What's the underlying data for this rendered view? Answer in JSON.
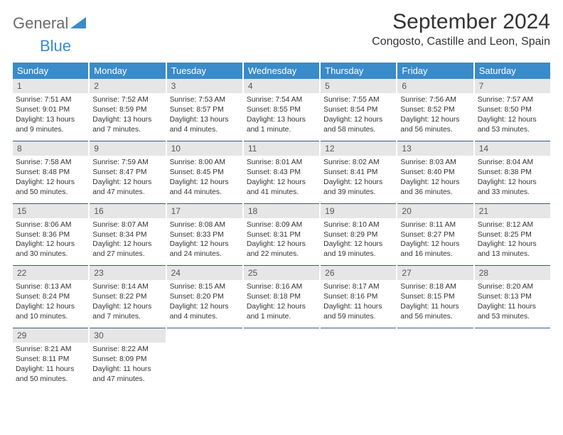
{
  "brand": {
    "part1": "General",
    "part2": "Blue"
  },
  "title": "September 2024",
  "location": "Congosto, Castille and Leon, Spain",
  "colors": {
    "header_bg": "#3a8bc9",
    "header_text": "#ffffff",
    "daynum_bg": "#e6e6e6",
    "row_border": "#3a5a80",
    "body_text": "#333333",
    "page_bg": "#ffffff"
  },
  "day_headers": [
    "Sunday",
    "Monday",
    "Tuesday",
    "Wednesday",
    "Thursday",
    "Friday",
    "Saturday"
  ],
  "weeks": [
    [
      {
        "n": "1",
        "sr": "7:51 AM",
        "ss": "9:01 PM",
        "dl": "13 hours and 9 minutes."
      },
      {
        "n": "2",
        "sr": "7:52 AM",
        "ss": "8:59 PM",
        "dl": "13 hours and 7 minutes."
      },
      {
        "n": "3",
        "sr": "7:53 AM",
        "ss": "8:57 PM",
        "dl": "13 hours and 4 minutes."
      },
      {
        "n": "4",
        "sr": "7:54 AM",
        "ss": "8:55 PM",
        "dl": "13 hours and 1 minute."
      },
      {
        "n": "5",
        "sr": "7:55 AM",
        "ss": "8:54 PM",
        "dl": "12 hours and 58 minutes."
      },
      {
        "n": "6",
        "sr": "7:56 AM",
        "ss": "8:52 PM",
        "dl": "12 hours and 56 minutes."
      },
      {
        "n": "7",
        "sr": "7:57 AM",
        "ss": "8:50 PM",
        "dl": "12 hours and 53 minutes."
      }
    ],
    [
      {
        "n": "8",
        "sr": "7:58 AM",
        "ss": "8:48 PM",
        "dl": "12 hours and 50 minutes."
      },
      {
        "n": "9",
        "sr": "7:59 AM",
        "ss": "8:47 PM",
        "dl": "12 hours and 47 minutes."
      },
      {
        "n": "10",
        "sr": "8:00 AM",
        "ss": "8:45 PM",
        "dl": "12 hours and 44 minutes."
      },
      {
        "n": "11",
        "sr": "8:01 AM",
        "ss": "8:43 PM",
        "dl": "12 hours and 41 minutes."
      },
      {
        "n": "12",
        "sr": "8:02 AM",
        "ss": "8:41 PM",
        "dl": "12 hours and 39 minutes."
      },
      {
        "n": "13",
        "sr": "8:03 AM",
        "ss": "8:40 PM",
        "dl": "12 hours and 36 minutes."
      },
      {
        "n": "14",
        "sr": "8:04 AM",
        "ss": "8:38 PM",
        "dl": "12 hours and 33 minutes."
      }
    ],
    [
      {
        "n": "15",
        "sr": "8:06 AM",
        "ss": "8:36 PM",
        "dl": "12 hours and 30 minutes."
      },
      {
        "n": "16",
        "sr": "8:07 AM",
        "ss": "8:34 PM",
        "dl": "12 hours and 27 minutes."
      },
      {
        "n": "17",
        "sr": "8:08 AM",
        "ss": "8:33 PM",
        "dl": "12 hours and 24 minutes."
      },
      {
        "n": "18",
        "sr": "8:09 AM",
        "ss": "8:31 PM",
        "dl": "12 hours and 22 minutes."
      },
      {
        "n": "19",
        "sr": "8:10 AM",
        "ss": "8:29 PM",
        "dl": "12 hours and 19 minutes."
      },
      {
        "n": "20",
        "sr": "8:11 AM",
        "ss": "8:27 PM",
        "dl": "12 hours and 16 minutes."
      },
      {
        "n": "21",
        "sr": "8:12 AM",
        "ss": "8:25 PM",
        "dl": "12 hours and 13 minutes."
      }
    ],
    [
      {
        "n": "22",
        "sr": "8:13 AM",
        "ss": "8:24 PM",
        "dl": "12 hours and 10 minutes."
      },
      {
        "n": "23",
        "sr": "8:14 AM",
        "ss": "8:22 PM",
        "dl": "12 hours and 7 minutes."
      },
      {
        "n": "24",
        "sr": "8:15 AM",
        "ss": "8:20 PM",
        "dl": "12 hours and 4 minutes."
      },
      {
        "n": "25",
        "sr": "8:16 AM",
        "ss": "8:18 PM",
        "dl": "12 hours and 1 minute."
      },
      {
        "n": "26",
        "sr": "8:17 AM",
        "ss": "8:16 PM",
        "dl": "11 hours and 59 minutes."
      },
      {
        "n": "27",
        "sr": "8:18 AM",
        "ss": "8:15 PM",
        "dl": "11 hours and 56 minutes."
      },
      {
        "n": "28",
        "sr": "8:20 AM",
        "ss": "8:13 PM",
        "dl": "11 hours and 53 minutes."
      }
    ],
    [
      {
        "n": "29",
        "sr": "8:21 AM",
        "ss": "8:11 PM",
        "dl": "11 hours and 50 minutes."
      },
      {
        "n": "30",
        "sr": "8:22 AM",
        "ss": "8:09 PM",
        "dl": "11 hours and 47 minutes."
      },
      null,
      null,
      null,
      null,
      null
    ]
  ],
  "labels": {
    "sunrise": "Sunrise:",
    "sunset": "Sunset:",
    "daylight": "Daylight:"
  }
}
